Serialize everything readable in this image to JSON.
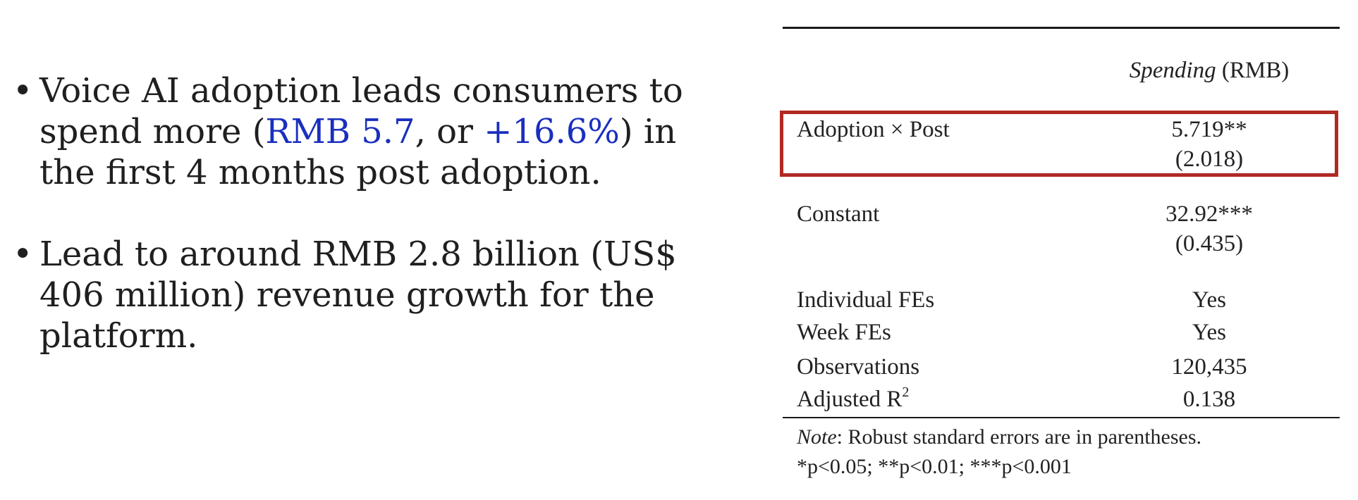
{
  "bullets": [
    {
      "parts": [
        "Voice AI adoption leads consumers to spend more (",
        "RMB 5.7",
        ", or ",
        "+16.6%",
        ") in the first 4 months post adoption."
      ]
    },
    {
      "text": "Lead to around RMB 2.8 billion (US$ 406 million) revenue growth for the platform."
    }
  ],
  "colors": {
    "highlight_text": "#1a2fbf",
    "box_border": "#b12a22"
  },
  "table": {
    "header": {
      "dv": "Spending",
      "unit": "(RMB)"
    },
    "rows": [
      {
        "label": "Adoption × Post",
        "value": "5.719**",
        "se": "(2.018)"
      },
      {
        "label": "Constant",
        "value": "32.92***",
        "se": "(0.435)"
      },
      {
        "label": "Individual FEs",
        "value": "Yes"
      },
      {
        "label": "Week FEs",
        "value": "Yes"
      },
      {
        "label": "Observations",
        "value": "120,435"
      },
      {
        "label": "Adjusted R",
        "label_sup": "2",
        "value": "0.138"
      }
    ],
    "note": {
      "label": "Note",
      "text": ": Robust standard errors are in parentheses.",
      "sig": "*p<0.05; **p<0.01; ***p<0.001"
    }
  }
}
